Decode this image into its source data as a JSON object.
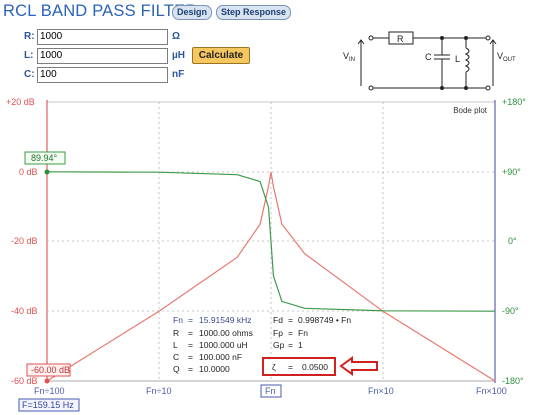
{
  "app": {
    "title": "RCL BAND PASS FILTER",
    "tabs": [
      {
        "label": "Design",
        "active": true
      },
      {
        "label": "Step Response",
        "active": false
      }
    ]
  },
  "form": {
    "fields": [
      {
        "name": "R",
        "label": "R:",
        "value": "1000",
        "unit": "Ω"
      },
      {
        "name": "L",
        "label": "L:",
        "value": "1000",
        "unit": "µH"
      },
      {
        "name": "C",
        "label": "C:",
        "value": "100",
        "unit": "nF"
      }
    ],
    "calculate_label": "Calculate"
  },
  "schematic": {
    "vin_label": "V",
    "vin_sub": "IN",
    "vout_label": "V",
    "vout_sub": "OUT",
    "r_label": "R",
    "c_label": "C",
    "l_label": "L"
  },
  "plot": {
    "title": "Bode plot",
    "left_ticks": [
      "+20 dB",
      "0 dB",
      "-20 dB",
      "-40 dB",
      "-60 dB"
    ],
    "right_ticks": [
      "+180°",
      "+90°",
      "0°",
      "-90°",
      "-180°"
    ],
    "bottom_ticks": [
      "Fn÷100",
      "Fn÷10",
      "Fn",
      "Fn×10",
      "Fn×100"
    ],
    "phase_marker": "89.94°",
    "gain_marker": "-60.00 dB",
    "freq_marker": "F=159.15 Hz",
    "colors": {
      "gain": "#e8796c",
      "phase": "#3d9a48",
      "left_axis": "#e05050",
      "right_axis": "#2d8f3b",
      "highlight": "#d02020"
    }
  },
  "results": {
    "left": [
      {
        "key": "Fn",
        "value": "15.91549 kHz"
      },
      {
        "key": "R",
        "value": "1000.00 ohms"
      },
      {
        "key": "L",
        "value": "1000.000 uH"
      },
      {
        "key": "C",
        "value": "100.000 nF"
      },
      {
        "key": "Q",
        "value": "10.0000"
      }
    ],
    "right": [
      {
        "key": "Fd",
        "value": "0.998749 • Fn"
      },
      {
        "key": "Fp",
        "value": "Fn"
      },
      {
        "key": "Gp",
        "value": "1"
      }
    ],
    "zeta": {
      "key": "ζ",
      "value": "0.0500"
    }
  },
  "chart_data": {
    "type": "line",
    "title": "Bode plot",
    "x_scale": "log",
    "x_ticks": [
      "Fn÷100",
      "Fn÷10",
      "Fn",
      "Fn×10",
      "Fn×100"
    ],
    "x_range_normalized_freq": [
      0.01,
      100
    ],
    "ylim_left_db": [
      -60,
      20
    ],
    "ylim_right_deg": [
      -180,
      180
    ],
    "series": [
      {
        "axis": "left",
        "color": "#e8796c",
        "x": [
          0.01,
          0.1,
          0.5,
          0.8,
          0.95,
          1,
          1.05,
          1.25,
          2,
          10,
          100
        ],
        "y": [
          -60,
          -40,
          -24.5,
          -15,
          -4.2,
          0,
          -4.2,
          -15,
          -23.5,
          -40,
          -60
        ]
      },
      {
        "axis": "right",
        "color": "#3d9a48",
        "x": [
          0.01,
          0.1,
          0.5,
          0.8,
          0.95,
          1,
          1.05,
          1.25,
          2,
          10,
          100
        ],
        "y": [
          89.9,
          89.4,
          86.2,
          77.3,
          44.3,
          0,
          -44.3,
          -77.3,
          -86.2,
          -89.4,
          -89.9
        ]
      }
    ]
  }
}
